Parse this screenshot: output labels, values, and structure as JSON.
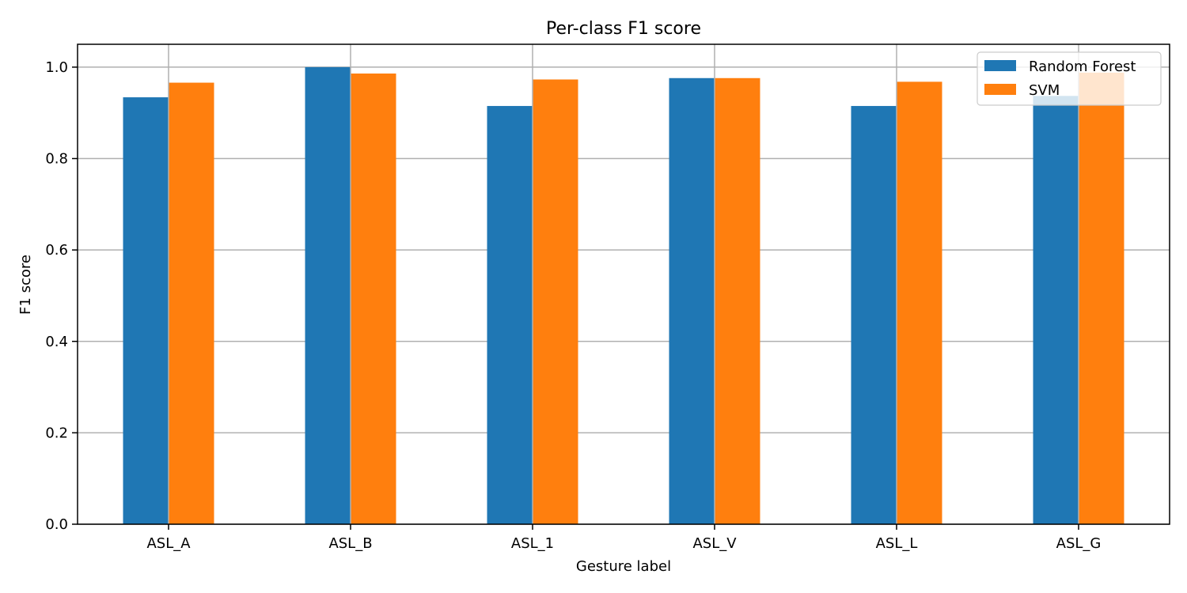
{
  "chart_data": {
    "type": "bar",
    "title": "Per-class F1 score",
    "xlabel": "Gesture label",
    "ylabel": "F1 score",
    "categories": [
      "ASL_A",
      "ASL_B",
      "ASL_1",
      "ASL_V",
      "ASL_L",
      "ASL_G"
    ],
    "series": [
      {
        "name": "Random Forest",
        "color": "#1f77b4",
        "values": [
          0.934,
          1.0,
          0.915,
          0.976,
          0.915,
          0.937
        ]
      },
      {
        "name": "SVM",
        "color": "#ff7f0e",
        "values": [
          0.966,
          0.986,
          0.973,
          0.976,
          0.968,
          0.988
        ]
      }
    ],
    "ylim": [
      0,
      1.05
    ],
    "yticks": [
      "0.0",
      "0.2",
      "0.4",
      "0.6",
      "0.8",
      "1.0"
    ],
    "grid": true,
    "legend_position": "top-right"
  }
}
